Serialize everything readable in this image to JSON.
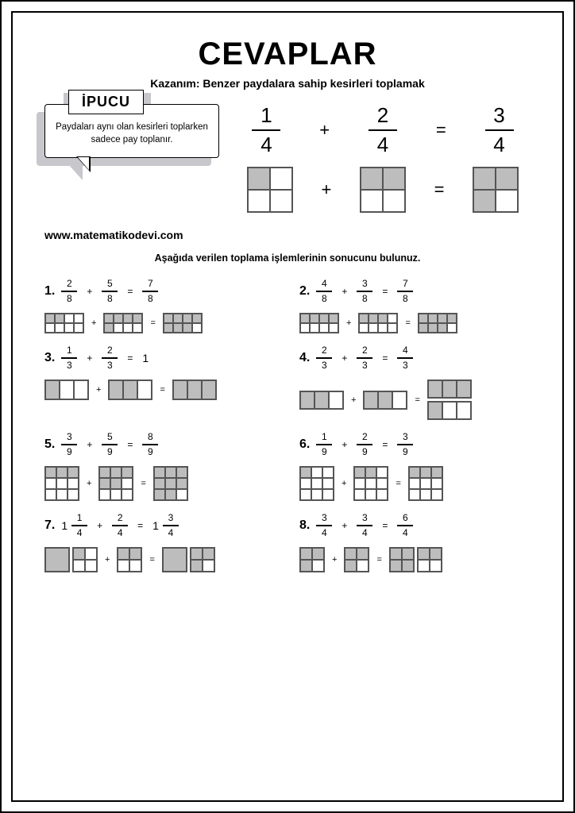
{
  "title": "CEVAPLAR",
  "subtitle": "Kazanım: Benzer paydalara sahip kesirleri toplamak",
  "hint_label": "İPUCU",
  "hint_text": "Paydaları aynı olan kesirleri toplarken sadece pay toplanır.",
  "url": "www.matematikodevi.com",
  "instruction": "Aşağıda verilen toplama işlemlerinin sonucunu bulunuz.",
  "colors": {
    "border": "#000000",
    "fill": "#bdbdbd",
    "shadow": "#c7c7cc",
    "bg": "#ffffff"
  },
  "example": {
    "fractions": [
      {
        "n": "1",
        "d": "4"
      },
      {
        "n": "2",
        "d": "4"
      },
      {
        "n": "3",
        "d": "4"
      }
    ],
    "ops": [
      "+",
      "="
    ],
    "grids": [
      {
        "cols": 2,
        "rows": 2,
        "w": 28,
        "h": 28,
        "filled": [
          0
        ]
      },
      {
        "cols": 2,
        "rows": 2,
        "w": 28,
        "h": 28,
        "filled": [
          0,
          1
        ]
      },
      {
        "cols": 2,
        "rows": 2,
        "w": 28,
        "h": 28,
        "filled": [
          0,
          1,
          2
        ]
      }
    ]
  },
  "problems": [
    {
      "num": "1.",
      "terms": [
        {
          "n": "2",
          "d": "8"
        },
        {
          "n": "5",
          "d": "8"
        },
        {
          "n": "7",
          "d": "8"
        }
      ],
      "ops": [
        "+",
        "="
      ],
      "vis": [
        {
          "grids": [
            {
              "cols": 4,
              "rows": 2,
              "w": 12,
              "h": 12,
              "filled": [
                0,
                1
              ]
            }
          ]
        },
        {
          "op": "+"
        },
        {
          "grids": [
            {
              "cols": 4,
              "rows": 2,
              "w": 12,
              "h": 12,
              "filled": [
                0,
                1,
                2,
                3,
                4
              ]
            }
          ]
        },
        {
          "op": "="
        },
        {
          "grids": [
            {
              "cols": 4,
              "rows": 2,
              "w": 12,
              "h": 12,
              "filled": [
                0,
                1,
                2,
                3,
                4,
                5,
                6
              ]
            }
          ]
        }
      ]
    },
    {
      "num": "2.",
      "terms": [
        {
          "n": "4",
          "d": "8"
        },
        {
          "n": "3",
          "d": "8"
        },
        {
          "n": "7",
          "d": "8"
        }
      ],
      "ops": [
        "+",
        "="
      ],
      "vis": [
        {
          "grids": [
            {
              "cols": 4,
              "rows": 2,
              "w": 12,
              "h": 12,
              "filled": [
                0,
                1,
                2,
                3
              ]
            }
          ]
        },
        {
          "op": "+"
        },
        {
          "grids": [
            {
              "cols": 4,
              "rows": 2,
              "w": 12,
              "h": 12,
              "filled": [
                0,
                1,
                2
              ]
            }
          ]
        },
        {
          "op": "="
        },
        {
          "grids": [
            {
              "cols": 4,
              "rows": 2,
              "w": 12,
              "h": 12,
              "filled": [
                0,
                1,
                2,
                3,
                4,
                5,
                6
              ]
            }
          ]
        }
      ]
    },
    {
      "num": "3.",
      "terms": [
        {
          "n": "1",
          "d": "3"
        },
        {
          "n": "2",
          "d": "3"
        },
        {
          "whole": "1"
        }
      ],
      "ops": [
        "+",
        "="
      ],
      "vis": [
        {
          "grids": [
            {
              "cols": 3,
              "rows": 1,
              "w": 18,
              "h": 24,
              "filled": [
                0
              ]
            }
          ]
        },
        {
          "op": "+"
        },
        {
          "grids": [
            {
              "cols": 3,
              "rows": 1,
              "w": 18,
              "h": 24,
              "filled": [
                0,
                1
              ]
            }
          ]
        },
        {
          "op": "="
        },
        {
          "grids": [
            {
              "cols": 3,
              "rows": 1,
              "w": 18,
              "h": 24,
              "filled": [
                0,
                1,
                2
              ]
            }
          ]
        }
      ]
    },
    {
      "num": "4.",
      "terms": [
        {
          "n": "2",
          "d": "3"
        },
        {
          "n": "2",
          "d": "3"
        },
        {
          "n": "4",
          "d": "3"
        }
      ],
      "ops": [
        "+",
        "="
      ],
      "vis": [
        {
          "grids": [
            {
              "cols": 3,
              "rows": 1,
              "w": 18,
              "h": 22,
              "filled": [
                0,
                1
              ]
            }
          ]
        },
        {
          "op": "+"
        },
        {
          "grids": [
            {
              "cols": 3,
              "rows": 1,
              "w": 18,
              "h": 22,
              "filled": [
                0,
                1
              ]
            }
          ]
        },
        {
          "op": "="
        },
        {
          "stack": [
            {
              "cols": 3,
              "rows": 1,
              "w": 18,
              "h": 22,
              "filled": [
                0,
                1,
                2
              ]
            },
            {
              "cols": 3,
              "rows": 1,
              "w": 18,
              "h": 22,
              "filled": [
                0
              ]
            }
          ]
        }
      ]
    },
    {
      "num": "5.",
      "terms": [
        {
          "n": "3",
          "d": "9"
        },
        {
          "n": "5",
          "d": "9"
        },
        {
          "n": "8",
          "d": "9"
        }
      ],
      "ops": [
        "+",
        "="
      ],
      "vis": [
        {
          "grids": [
            {
              "cols": 3,
              "rows": 3,
              "w": 14,
              "h": 14,
              "filled": [
                0,
                1,
                2
              ]
            }
          ]
        },
        {
          "op": "+"
        },
        {
          "grids": [
            {
              "cols": 3,
              "rows": 3,
              "w": 14,
              "h": 14,
              "filled": [
                0,
                1,
                2,
                3,
                4
              ]
            }
          ]
        },
        {
          "op": "="
        },
        {
          "grids": [
            {
              "cols": 3,
              "rows": 3,
              "w": 14,
              "h": 14,
              "filled": [
                0,
                1,
                2,
                3,
                4,
                5,
                6,
                7
              ]
            }
          ]
        }
      ]
    },
    {
      "num": "6.",
      "terms": [
        {
          "n": "1",
          "d": "9"
        },
        {
          "n": "2",
          "d": "9"
        },
        {
          "n": "3",
          "d": "9"
        }
      ],
      "ops": [
        "+",
        "="
      ],
      "vis": [
        {
          "grids": [
            {
              "cols": 3,
              "rows": 3,
              "w": 14,
              "h": 14,
              "filled": [
                0
              ]
            }
          ]
        },
        {
          "op": "+"
        },
        {
          "grids": [
            {
              "cols": 3,
              "rows": 3,
              "w": 14,
              "h": 14,
              "filled": [
                0,
                1
              ]
            }
          ]
        },
        {
          "op": "="
        },
        {
          "grids": [
            {
              "cols": 3,
              "rows": 3,
              "w": 14,
              "h": 14,
              "filled": [
                0,
                1,
                2
              ]
            }
          ]
        }
      ]
    },
    {
      "num": "7.",
      "terms": [
        {
          "whole": "1",
          "n": "1",
          "d": "4"
        },
        {
          "n": "2",
          "d": "4"
        },
        {
          "whole": "1",
          "n": "3",
          "d": "4"
        }
      ],
      "ops": [
        "+",
        "="
      ],
      "vis": [
        {
          "grids": [
            {
              "cols": 1,
              "rows": 1,
              "w": 30,
              "h": 30,
              "filled": [
                0
              ]
            },
            {
              "cols": 2,
              "rows": 2,
              "w": 15,
              "h": 15,
              "filled": [
                0
              ]
            }
          ]
        },
        {
          "op": "+"
        },
        {
          "grids": [
            {
              "cols": 2,
              "rows": 2,
              "w": 15,
              "h": 15,
              "filled": [
                0,
                1
              ]
            }
          ]
        },
        {
          "op": "="
        },
        {
          "grids": [
            {
              "cols": 1,
              "rows": 1,
              "w": 30,
              "h": 30,
              "filled": [
                0
              ]
            },
            {
              "cols": 2,
              "rows": 2,
              "w": 15,
              "h": 15,
              "filled": [
                0,
                1,
                2
              ]
            }
          ]
        }
      ]
    },
    {
      "num": "8.",
      "terms": [
        {
          "n": "3",
          "d": "4"
        },
        {
          "n": "3",
          "d": "4"
        },
        {
          "n": "6",
          "d": "4"
        }
      ],
      "ops": [
        "+",
        "="
      ],
      "vis": [
        {
          "grids": [
            {
              "cols": 2,
              "rows": 2,
              "w": 15,
              "h": 15,
              "filled": [
                0,
                1,
                2
              ]
            }
          ]
        },
        {
          "op": "+"
        },
        {
          "grids": [
            {
              "cols": 2,
              "rows": 2,
              "w": 15,
              "h": 15,
              "filled": [
                0,
                1,
                2
              ]
            }
          ]
        },
        {
          "op": "="
        },
        {
          "grids": [
            {
              "cols": 2,
              "rows": 2,
              "w": 15,
              "h": 15,
              "filled": [
                0,
                1,
                2,
                3
              ]
            },
            {
              "cols": 2,
              "rows": 2,
              "w": 15,
              "h": 15,
              "filled": [
                0,
                1
              ]
            }
          ]
        }
      ]
    }
  ]
}
